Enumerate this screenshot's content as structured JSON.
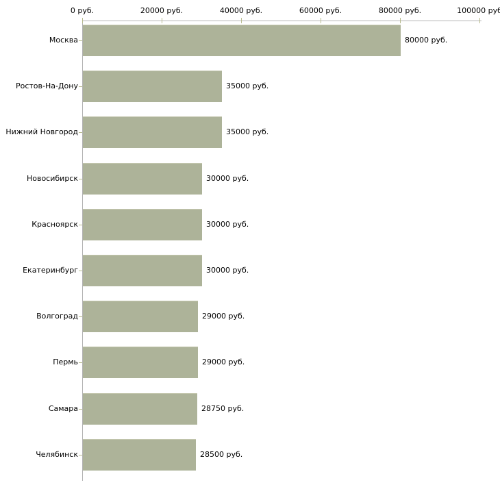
{
  "chart_data": {
    "type": "bar",
    "orientation": "horizontal",
    "categories": [
      "Москва",
      "Ростов-На-Дону",
      "Нижний Новгород",
      "Новосибирск",
      "Красноярск",
      "Екатеринбург",
      "Волгоград",
      "Пермь",
      "Самара",
      "Челябинск"
    ],
    "values": [
      80000,
      35000,
      35000,
      30000,
      30000,
      30000,
      29000,
      29000,
      28750,
      28500
    ],
    "value_labels": [
      "80000 руб.",
      "35000 руб.",
      "35000 руб.",
      "30000 руб.",
      "30000 руб.",
      "30000 руб.",
      "29000 руб.",
      "29000 руб.",
      "28750 руб.",
      "28500 руб."
    ],
    "xlabel": "",
    "ylabel": "",
    "xlim": [
      0,
      100000
    ],
    "x_ticks": [
      0,
      20000,
      40000,
      60000,
      80000,
      100000
    ],
    "x_tick_labels": [
      "0 руб.",
      "20000 руб.",
      "40000 руб.",
      "60000 руб.",
      "80000 руб.",
      "100000 руб"
    ],
    "grid": false,
    "legend": false,
    "axis_position": "top",
    "colors": {
      "bar_fill": "#adb399",
      "bar_top_edge": "#c3c6ad",
      "axis_line": "#b3b3b3",
      "tick_mark": "#b8bb8e",
      "text": "#000000",
      "background": "#ffffff"
    }
  }
}
